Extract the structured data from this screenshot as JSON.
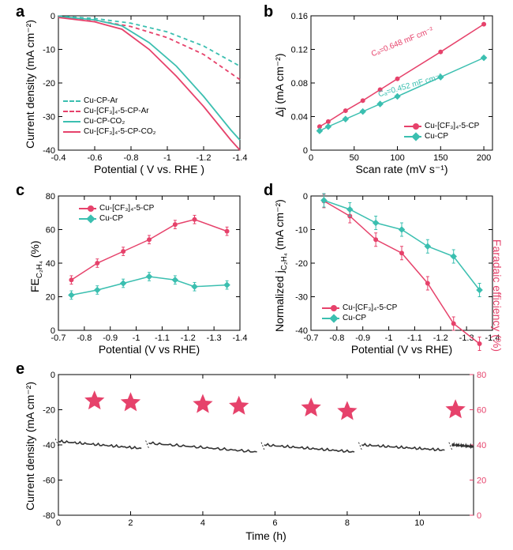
{
  "labels": {
    "a": "a",
    "b": "b",
    "c": "c",
    "d": "d",
    "e": "e"
  },
  "colors": {
    "red": "#e6426b",
    "teal": "#3bbfb0",
    "teal2": "#5ac7bc",
    "black": "#333333",
    "axis": "#000000",
    "bg": "#ffffff"
  },
  "panelA": {
    "type": "line",
    "xlabel": "Potential ( V vs. RHE )",
    "ylabel": "Current density (mA cm⁻²)",
    "xlim": [
      -0.4,
      -1.4
    ],
    "ylim": [
      -40,
      0
    ],
    "xticks": [
      -0.4,
      -0.6,
      -0.8,
      -1.0,
      -1.2,
      -1.4
    ],
    "yticks": [
      0,
      -10,
      -20,
      -30,
      -40
    ],
    "legend": [
      {
        "label": "Cu-CP-Ar",
        "color": "#3bbfb0",
        "dash": true
      },
      {
        "label": "Cu-[CF₃]₄-5-CP-Ar",
        "color": "#e6426b",
        "dash": true
      },
      {
        "label": "Cu-CP-CO₂",
        "color": "#3bbfb0",
        "dash": false
      },
      {
        "label": "Cu-[CF₃]₄-5-CP-CO₂",
        "color": "#e6426b",
        "dash": false
      }
    ],
    "series": {
      "teal_dash": [
        [
          -0.4,
          -0.1
        ],
        [
          -0.6,
          -0.8
        ],
        [
          -0.8,
          -2.2
        ],
        [
          -1.0,
          -4.8
        ],
        [
          -1.2,
          -9
        ],
        [
          -1.4,
          -15
        ]
      ],
      "red_dash": [
        [
          -0.4,
          -0.4
        ],
        [
          -0.6,
          -1.3
        ],
        [
          -0.8,
          -3.2
        ],
        [
          -1.0,
          -6.5
        ],
        [
          -1.2,
          -11.5
        ],
        [
          -1.4,
          -19
        ]
      ],
      "teal_solid": [
        [
          -0.4,
          -0.2
        ],
        [
          -0.6,
          -1.2
        ],
        [
          -0.75,
          -3.0
        ],
        [
          -0.9,
          -8
        ],
        [
          -1.05,
          -15
        ],
        [
          -1.2,
          -24
        ],
        [
          -1.35,
          -34
        ],
        [
          -1.4,
          -37
        ]
      ],
      "red_solid": [
        [
          -0.4,
          -0.5
        ],
        [
          -0.6,
          -1.8
        ],
        [
          -0.75,
          -4.0
        ],
        [
          -0.9,
          -10
        ],
        [
          -1.05,
          -18
        ],
        [
          -1.2,
          -27
        ],
        [
          -1.35,
          -37
        ],
        [
          -1.4,
          -40
        ]
      ]
    },
    "line_width": 1.8
  },
  "panelB": {
    "type": "scatter-line",
    "xlabel": "Scan rate (mV s⁻¹)",
    "ylabel": "Δj (mA cm⁻²)",
    "xlim": [
      0,
      210
    ],
    "ylim": [
      0,
      0.16
    ],
    "xticks": [
      0,
      50,
      100,
      150,
      200
    ],
    "yticks": [
      0,
      0.04,
      0.08,
      0.12,
      0.16
    ],
    "legend": [
      {
        "label": "Cu-[CF₃]₄-5-CP",
        "color": "#e6426b",
        "marker": "circle"
      },
      {
        "label": "Cu-CP",
        "color": "#3bbfb0",
        "marker": "diamond"
      }
    ],
    "red": [
      [
        10,
        0.028
      ],
      [
        20,
        0.034
      ],
      [
        40,
        0.047
      ],
      [
        60,
        0.059
      ],
      [
        80,
        0.072
      ],
      [
        100,
        0.085
      ],
      [
        150,
        0.117
      ],
      [
        200,
        0.15
      ]
    ],
    "teal": [
      [
        10,
        0.023
      ],
      [
        20,
        0.028
      ],
      [
        40,
        0.037
      ],
      [
        60,
        0.046
      ],
      [
        80,
        0.055
      ],
      [
        100,
        0.064
      ],
      [
        150,
        0.087
      ],
      [
        200,
        0.11
      ]
    ],
    "anno_red": "Cₐ=0.648 mF cm⁻²",
    "anno_teal": "Cₐ=0.452 mF cm⁻²",
    "marker_size": 5,
    "line_width": 1.5
  },
  "panelC": {
    "type": "line-marker",
    "xlabel": "Potential (V vs RHE)",
    "ylabel_html": "FE<sub>C₂H₄</sub> (%)",
    "xlim": [
      -0.7,
      -1.4
    ],
    "ylim": [
      0,
      80
    ],
    "xticks": [
      -0.7,
      -0.8,
      -0.9,
      -1.0,
      -1.1,
      -1.2,
      -1.3,
      -1.4
    ],
    "yticks": [
      0,
      20,
      40,
      60,
      80
    ],
    "legend": [
      {
        "label": "Cu-[CF₃]₄-5-CP",
        "color": "#e6426b",
        "marker": "circle"
      },
      {
        "label": "Cu-CP",
        "color": "#3bbfb0",
        "marker": "diamond"
      }
    ],
    "red": [
      [
        -0.75,
        30
      ],
      [
        -0.85,
        40
      ],
      [
        -0.95,
        47
      ],
      [
        -1.05,
        54
      ],
      [
        -1.15,
        63
      ],
      [
        -1.225,
        66
      ],
      [
        -1.35,
        59
      ]
    ],
    "teal": [
      [
        -0.75,
        21
      ],
      [
        -0.85,
        24
      ],
      [
        -0.95,
        28
      ],
      [
        -1.05,
        32
      ],
      [
        -1.15,
        30
      ],
      [
        -1.225,
        26
      ],
      [
        -1.35,
        27
      ]
    ],
    "err": 2.5,
    "marker_size": 5,
    "line_width": 1.5
  },
  "panelD": {
    "type": "line-marker",
    "xlabel": "Potential (V vs RHE)",
    "ylabel_html": "Normalized j<sub>C₂H₄</sub> (mA cm⁻²)",
    "xlim": [
      -0.7,
      -1.4
    ],
    "ylim": [
      -40,
      0
    ],
    "xticks": [
      -0.7,
      -0.8,
      -0.9,
      -1.0,
      -1.1,
      -1.2,
      -1.3,
      -1.4
    ],
    "yticks": [
      0,
      -10,
      -20,
      -30,
      -40
    ],
    "legend": [
      {
        "label": "Cu-[CF₃]₄-5-CP",
        "color": "#e6426b",
        "marker": "circle"
      },
      {
        "label": "Cu-CP",
        "color": "#3bbfb0",
        "marker": "diamond"
      }
    ],
    "red": [
      [
        -0.75,
        -1.5
      ],
      [
        -0.85,
        -6
      ],
      [
        -0.95,
        -13
      ],
      [
        -1.05,
        -17
      ],
      [
        -1.15,
        -26
      ],
      [
        -1.25,
        -38
      ],
      [
        -1.35,
        -44
      ]
    ],
    "teal": [
      [
        -0.75,
        -1.3
      ],
      [
        -0.85,
        -4
      ],
      [
        -0.95,
        -8
      ],
      [
        -1.05,
        -10
      ],
      [
        -1.15,
        -15
      ],
      [
        -1.25,
        -18
      ],
      [
        -1.35,
        -28
      ]
    ],
    "err": 2.0,
    "marker_size": 5,
    "line_width": 1.5
  },
  "panelE": {
    "type": "dual-axis",
    "xlabel": "Time (h)",
    "ylabel_left": "Current density (mA cm⁻²)",
    "ylabel_right": "Faradaic efficiency (%)",
    "xlim": [
      0,
      11.5
    ],
    "ylimL": [
      -80,
      0
    ],
    "ylimR": [
      0,
      80
    ],
    "xticks": [
      0,
      2,
      4,
      6,
      8,
      10
    ],
    "yticksL": [
      0,
      -20,
      -40,
      -60,
      -80
    ],
    "yticksR": [
      0,
      20,
      40,
      60,
      80
    ],
    "cd_color": "#333333",
    "fe_color": "#e6426b",
    "stars": [
      [
        1,
        65
      ],
      [
        2,
        64
      ],
      [
        4,
        63
      ],
      [
        5,
        62
      ],
      [
        7,
        61
      ],
      [
        8,
        59
      ],
      [
        11,
        60
      ]
    ],
    "cd_segments": [
      [
        [
          0,
          -38
        ],
        [
          2.3,
          -42
        ]
      ],
      [
        [
          2.5,
          -39
        ],
        [
          5.5,
          -44
        ]
      ],
      [
        [
          5.7,
          -40
        ],
        [
          8.2,
          -44
        ]
      ],
      [
        [
          8.4,
          -40
        ],
        [
          10.7,
          -43
        ]
      ],
      [
        [
          10.9,
          -40
        ],
        [
          11.5,
          -41
        ]
      ]
    ],
    "line_width": 1.6,
    "star_size": 12
  }
}
